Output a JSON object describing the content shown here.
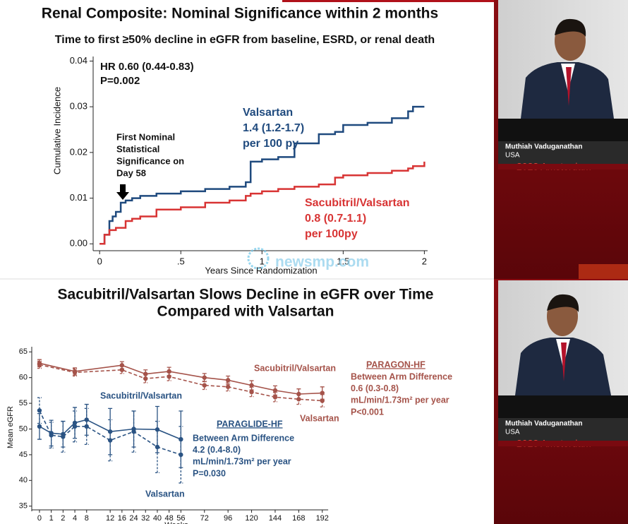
{
  "chart_data": [
    {
      "type": "line",
      "step": true,
      "title": "Renal Composite: Nominal Significance within 2 months",
      "subtitle": "Time to first ≥50% decline in eGFR from baseline, ESRD, or renal death",
      "x_label": "Years Since Randomization",
      "y_label": "Cumulative Incidence",
      "xlim": [
        -0.04,
        2.02
      ],
      "ylim": [
        -0.0015,
        0.041
      ],
      "xticks": [
        0,
        {
          "value": 0.5,
          "label": ".5"
        },
        1,
        1.5,
        2
      ],
      "yticks": [
        {
          "value": 0,
          "label": "0.00"
        },
        {
          "value": 0.01,
          "label": "0.01"
        },
        {
          "value": 0.02,
          "label": "0.02"
        },
        {
          "value": 0.03,
          "label": "0.03"
        },
        {
          "value": 0.04,
          "label": "0.04"
        }
      ],
      "hr": "HR 0.60 (0.44-0.83)",
      "p": "P=0.002",
      "annotation": [
        "First Nominal",
        "Statistical",
        "Significance on",
        "Day 58"
      ],
      "x": [
        0,
        0.03,
        0.06,
        0.08,
        0.1,
        0.13,
        0.16,
        0.2,
        0.25,
        0.35,
        0.5,
        0.65,
        0.8,
        0.9,
        0.93,
        1.0,
        1.1,
        1.2,
        1.35,
        1.45,
        1.5,
        1.65,
        1.8,
        1.9,
        1.93,
        2.0
      ],
      "series": [
        {
          "name": "Valsartan",
          "rate": "1.4 (1.2-1.7)",
          "unit": "per 100 py",
          "color": "#1f4a7e",
          "values": [
            0,
            0.002,
            0.005,
            0.006,
            0.007,
            0.009,
            0.0095,
            0.01,
            0.0105,
            0.011,
            0.0115,
            0.012,
            0.0125,
            0.0135,
            0.018,
            0.0185,
            0.019,
            0.022,
            0.024,
            0.0245,
            0.026,
            0.0265,
            0.0275,
            0.029,
            0.03,
            0.03
          ]
        },
        {
          "name": "Sacubitril/Valsartan",
          "rate": "0.8 (0.7-1.1)",
          "unit": "per 100py",
          "color": "#d83434",
          "values": [
            0,
            0.002,
            0.003,
            0.003,
            0.0035,
            0.0035,
            0.005,
            0.0055,
            0.006,
            0.0075,
            0.008,
            0.009,
            0.0095,
            0.0105,
            0.011,
            0.0115,
            0.012,
            0.0125,
            0.013,
            0.0145,
            0.015,
            0.0155,
            0.016,
            0.0165,
            0.017,
            0.018
          ]
        }
      ]
    },
    {
      "type": "errorline",
      "title": [
        "Sacubitril/Valsartan Slows Decline in eGFR over Time",
        "Compared with Valsartan"
      ],
      "x_label": "Weeks",
      "y_label": "Mean eGFR",
      "categories": [
        "0",
        "1",
        "2",
        "4",
        "8",
        null,
        "12",
        "16",
        "24",
        "32",
        "40",
        "48",
        "56",
        null,
        "72",
        null,
        "96",
        null,
        "120",
        null,
        "144",
        null,
        "168",
        null,
        "192"
      ],
      "ylim": [
        34,
        66
      ],
      "yticks": [
        35,
        40,
        45,
        50,
        55,
        60,
        65
      ],
      "series": [
        {
          "name": "Sacubitril/Valsartan",
          "color": "#a5534a",
          "dash": false,
          "x": [
            "0",
            "4",
            "16",
            "32",
            "48",
            "72",
            "96",
            "120",
            "144",
            "168",
            "192"
          ],
          "values": [
            62.8,
            61.2,
            62.4,
            60.7,
            61.2,
            60.0,
            59.5,
            58.5,
            57.5,
            56.8,
            57.0
          ],
          "errors": [
            0.7,
            0.7,
            0.7,
            0.8,
            0.8,
            0.8,
            0.8,
            0.9,
            0.9,
            1.0,
            1.2
          ]
        },
        {
          "name": "Valsartan",
          "color": "#a5534a",
          "dash": true,
          "x": [
            "0",
            "4",
            "16",
            "32",
            "48",
            "72",
            "96",
            "120",
            "144",
            "168",
            "192"
          ],
          "values": [
            62.5,
            61.0,
            61.5,
            59.8,
            60.2,
            58.5,
            58.2,
            57.2,
            56.2,
            55.8,
            55.5
          ],
          "errors": [
            0.7,
            0.7,
            0.7,
            0.8,
            0.8,
            0.8,
            0.8,
            0.9,
            0.9,
            1.0,
            1.2
          ]
        },
        {
          "name": "Sacubitril/Valsartan",
          "color": "#2a5383",
          "dash": false,
          "x": [
            "0",
            "1",
            "2",
            "4",
            "8",
            "12",
            "24",
            "40",
            "56"
          ],
          "values": [
            50.5,
            49.2,
            49.0,
            51.2,
            51.8,
            49.5,
            50.0,
            49.9,
            48.0
          ],
          "errors": [
            2.5,
            2.5,
            2.5,
            3.0,
            3.0,
            4.5,
            3.5,
            4.5,
            5.5
          ]
        },
        {
          "name": "Valsartan",
          "color": "#2a5383",
          "dash": true,
          "x": [
            "0",
            "1",
            "2",
            "4",
            "8",
            "12",
            "24",
            "40",
            "56"
          ],
          "values": [
            53.6,
            48.8,
            48.5,
            50.5,
            50.5,
            47.8,
            49.5,
            46.5,
            45.0
          ],
          "errors": [
            2.5,
            2.5,
            3.0,
            3.0,
            3.5,
            4.0,
            4.0,
            5.0,
            5.5
          ]
        }
      ],
      "annotations": [
        {
          "title": "PARAGON-HF",
          "color": "#a5534a",
          "lines": [
            "Between Arm Difference",
            "0.6 (0.3-0.8)",
            "mL/min/1.73m² per year",
            "P<0.001"
          ]
        },
        {
          "title": "PARAGLIDE-HF",
          "color": "#2a5383",
          "lines": [
            "Between Arm Difference",
            "4.2 (0.4-8.0)",
            "mL/min/1.73m² per year",
            "P=0.030"
          ]
        }
      ]
    }
  ],
  "watermark": "newsmp.com",
  "speakers": [
    {
      "name": "Muthiah Vaduganathan",
      "country": "USA",
      "banner": "2023 Amsterdam"
    },
    {
      "name": "Muthiah Vaduganathan",
      "country": "USA",
      "banner": "2023 Amsterdam"
    }
  ]
}
